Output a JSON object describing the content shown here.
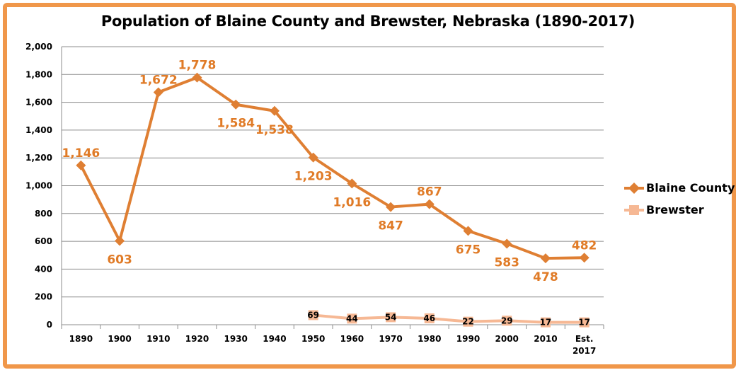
{
  "colors": {
    "frame": "#f0974a",
    "blaine": "#df7f33",
    "brewster": "#f6b894",
    "grid": "#8c8c8c",
    "label_blaine": "#e07b27"
  },
  "chart_data": {
    "type": "line",
    "title": "Population of Blaine County and Brewster, Nebraska (1890-2017)",
    "xlabel": "",
    "ylabel": "",
    "categories": [
      "1890",
      "1900",
      "1910",
      "1920",
      "1930",
      "1940",
      "1950",
      "1960",
      "1970",
      "1980",
      "1990",
      "2000",
      "2010",
      "Est. 2017"
    ],
    "ylim": [
      0,
      2000
    ],
    "yticks": [
      0,
      200,
      400,
      600,
      800,
      1000,
      1200,
      1400,
      1600,
      1800,
      2000
    ],
    "ytick_labels": [
      "0",
      "200",
      "400",
      "600",
      "800",
      "1,000",
      "1,200",
      "1,400",
      "1,600",
      "1,800",
      "2,000"
    ],
    "grid": true,
    "legend_position": "right",
    "series": [
      {
        "name": "Blaine County",
        "marker": "diamond",
        "values": [
          1146,
          603,
          1672,
          1778,
          1584,
          1538,
          1203,
          1016,
          847,
          867,
          675,
          583,
          478,
          482
        ],
        "labels": [
          "1,146",
          "603",
          "1,672",
          "1,778",
          "1,584",
          "1,538",
          "1,203",
          "1,016",
          "847",
          "867",
          "675",
          "583",
          "478",
          "482"
        ]
      },
      {
        "name": "Brewster",
        "marker": "square",
        "values": [
          null,
          null,
          null,
          null,
          null,
          null,
          69,
          44,
          54,
          46,
          22,
          29,
          17,
          17
        ],
        "labels": [
          "",
          "",
          "",
          "",
          "",
          "",
          "69",
          "44",
          "54",
          "46",
          "22",
          "29",
          "17",
          "17"
        ]
      }
    ]
  }
}
